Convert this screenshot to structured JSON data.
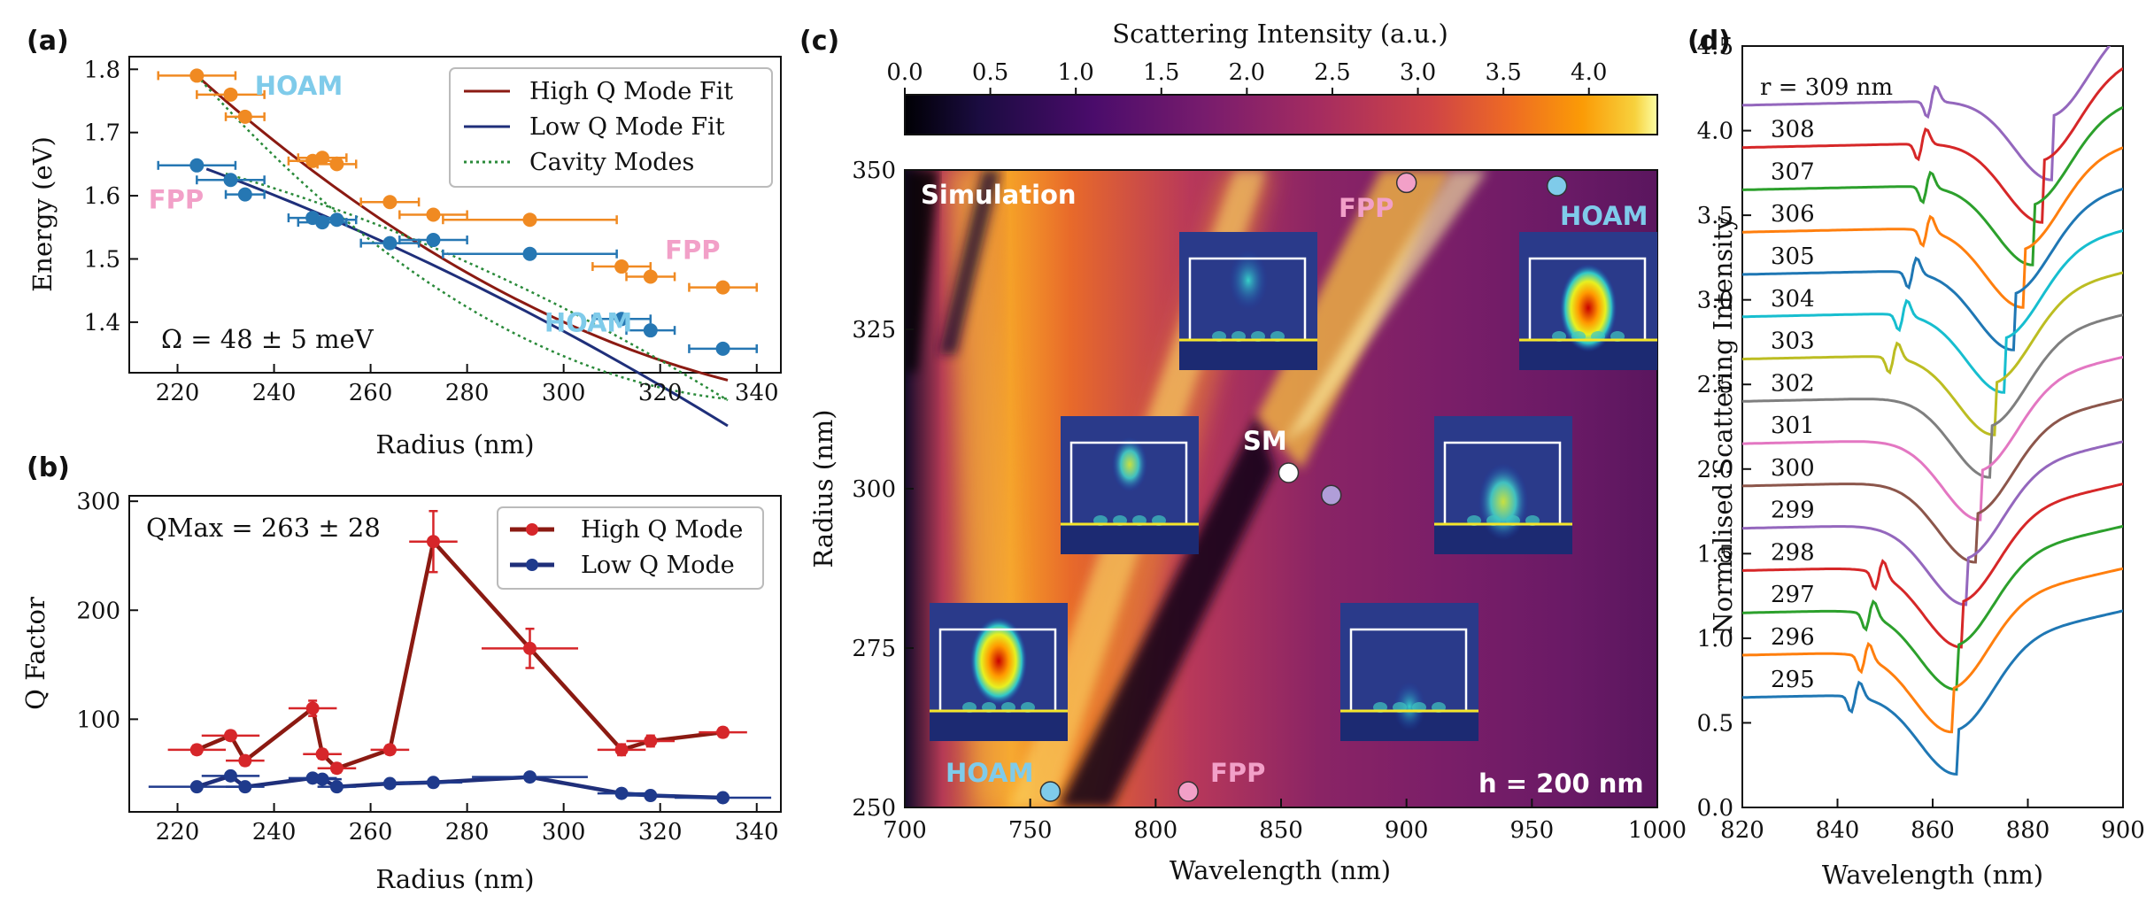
{
  "colors": {
    "orange": "#f08a22",
    "blue": "#2677b3",
    "highfit": "#8b1a12",
    "lowfit": "#1f2f7a",
    "cavity": "#2a8a3a",
    "red": "#d6262a",
    "navy": "#1f3a8c",
    "hoam": "#7fcbea",
    "fpp": "#f2a0c8"
  },
  "chart_data": [
    {
      "panel": "(a)",
      "type": "scatter",
      "xlabel": "Radius (nm)",
      "ylabel": "Energy (eV)",
      "xlim": [
        210,
        345
      ],
      "ylim": [
        1.32,
        1.82
      ],
      "xticks": [
        220,
        240,
        260,
        280,
        300,
        320,
        340
      ],
      "yticks": [
        1.4,
        1.5,
        1.6,
        1.7,
        1.8
      ],
      "annotation": "Ω = 48 ± 5 meV",
      "labels": [
        {
          "text": "HOAM",
          "x": 236,
          "y": 1.76,
          "color": "hoam"
        },
        {
          "text": "FPP",
          "x": 214,
          "y": 1.58,
          "color": "fpp"
        },
        {
          "text": "FPP",
          "x": 321,
          "y": 1.5,
          "color": "fpp"
        },
        {
          "text": "HOAM",
          "x": 296,
          "y": 1.385,
          "color": "hoam"
        }
      ],
      "legend": [
        "High Q Mode Fit",
        "Low Q Mode Fit",
        "Cavity Modes"
      ],
      "series": [
        {
          "name": "upper",
          "color": "orange",
          "x": [
            224,
            231,
            234,
            248,
            250,
            253,
            264,
            273,
            293,
            312,
            318,
            333
          ],
          "y": [
            1.79,
            1.76,
            1.725,
            1.655,
            1.66,
            1.65,
            1.59,
            1.57,
            1.562,
            1.488,
            1.472,
            1.455
          ],
          "xerr": [
            8,
            7,
            4,
            5,
            5,
            4,
            6,
            7,
            18,
            6,
            5,
            7
          ]
        },
        {
          "name": "lower",
          "color": "blue",
          "x": [
            224,
            231,
            234,
            248,
            250,
            253,
            264,
            273,
            293,
            312,
            318,
            333
          ],
          "y": [
            1.648,
            1.625,
            1.602,
            1.565,
            1.558,
            1.562,
            1.525,
            1.53,
            1.508,
            1.405,
            1.387,
            1.358
          ],
          "xerr": [
            8,
            7,
            4,
            5,
            5,
            4,
            6,
            7,
            18,
            6,
            5,
            7
          ]
        }
      ]
    },
    {
      "panel": "(b)",
      "type": "line",
      "xlabel": "Radius (nm)",
      "ylabel": "Q Factor",
      "xlim": [
        210,
        345
      ],
      "ylim": [
        15,
        305
      ],
      "xticks": [
        220,
        240,
        260,
        280,
        300,
        320,
        340
      ],
      "yticks": [
        100,
        200,
        300
      ],
      "annotation": "QMax = 263 ± 28",
      "legend": [
        "High Q Mode",
        "Low Q Mode"
      ],
      "series": [
        {
          "name": "High Q Mode",
          "color": "red",
          "line": "highfit",
          "x": [
            224,
            231,
            234,
            248,
            250,
            253,
            264,
            273,
            293,
            312,
            318,
            333
          ],
          "y": [
            72,
            85,
            62,
            110,
            68,
            55,
            72,
            263,
            165,
            72,
            80,
            88
          ],
          "yerr": [
            4,
            4,
            4,
            7,
            4,
            4,
            4,
            28,
            18,
            5,
            5,
            4
          ],
          "xerr": [
            6,
            6,
            4,
            5,
            4,
            4,
            4,
            5,
            10,
            5,
            5,
            5
          ]
        },
        {
          "name": "Low Q Mode",
          "color": "navy",
          "line": "lowfit",
          "x": [
            224,
            231,
            234,
            248,
            250,
            253,
            264,
            273,
            293,
            312,
            318,
            333
          ],
          "y": [
            38,
            48,
            38,
            46,
            45,
            38,
            41,
            42,
            47,
            32,
            30,
            28
          ],
          "yerr": [
            2,
            3,
            2,
            3,
            3,
            2,
            2,
            2,
            3,
            2,
            2,
            2
          ],
          "xerr": [
            10,
            6,
            4,
            5,
            4,
            4,
            4,
            6,
            12,
            5,
            5,
            10
          ]
        }
      ]
    },
    {
      "panel": "(c)",
      "type": "heatmap",
      "xlabel": "Wavelength (nm)",
      "ylabel": "Radius (nm)",
      "xlim": [
        700,
        1000
      ],
      "ylim": [
        250,
        350
      ],
      "xticks": [
        700,
        750,
        800,
        850,
        900,
        950,
        1000
      ],
      "yticks": [
        250,
        275,
        300,
        325,
        350
      ],
      "colorbar": {
        "label": "Scattering Intensity (a.u.)",
        "range": [
          0,
          4.4
        ],
        "ticks": [
          "0.0",
          "0.5",
          "1.0",
          "1.5",
          "2.0",
          "2.5",
          "3.0",
          "3.5",
          "4.0"
        ]
      },
      "labels": {
        "simulation": "Simulation",
        "height": "h = 200 nm",
        "sm": "SM",
        "hoam": "HOAM",
        "fpp": "FPP"
      },
      "markers": [
        {
          "x": 758,
          "y": 252.5,
          "color": "hoam"
        },
        {
          "x": 813,
          "y": 252.5,
          "color": "fpp"
        },
        {
          "x": 900,
          "y": 348,
          "color": "fpp"
        },
        {
          "x": 960,
          "y": 347.5,
          "color": "hoam"
        },
        {
          "x": 853,
          "y": 302.5,
          "color": "white"
        },
        {
          "x": 870,
          "y": 299,
          "color": "#b09ed8"
        }
      ]
    },
    {
      "panel": "(d)",
      "type": "line",
      "xlabel": "Wavelength (nm)",
      "ylabel": "Normalised Scattering Intensity",
      "xlim": [
        820,
        900
      ],
      "ylim": [
        0,
        4.5
      ],
      "xticks": [
        820,
        840,
        860,
        880,
        900
      ],
      "yticks": [
        "0.0",
        "0.5",
        "1.0",
        "1.5",
        "2.0",
        "2.5",
        "3.0",
        "3.5",
        "4.0",
        "4.5"
      ],
      "series_labels": [
        "r = 309 nm",
        "308",
        "307",
        "306",
        "305",
        "304",
        "303",
        "302",
        "301",
        "300",
        "299",
        "298",
        "297",
        "296",
        "295"
      ],
      "series_colors": [
        "#9467bd",
        "#d62728",
        "#2ca02c",
        "#ff7f0e",
        "#1f77b4",
        "#17becf",
        "#bcbd22",
        "#7f7f7f",
        "#e377c2",
        "#8c564b",
        "#9467bd",
        "#d62728",
        "#2ca02c",
        "#ff7f0e",
        "#1f77b4"
      ],
      "offsets": [
        4.15,
        3.9,
        3.65,
        3.4,
        3.15,
        2.9,
        2.65,
        2.4,
        2.15,
        1.9,
        1.65,
        1.4,
        1.15,
        0.9,
        0.65
      ],
      "dip_centers": [
        885,
        883,
        881,
        879,
        877,
        875,
        873,
        872,
        870,
        869,
        867,
        866,
        865,
        864,
        865
      ],
      "sharp_dips": [
        859,
        857,
        858,
        858,
        855,
        853,
        851,
        0,
        0,
        0,
        0,
        848,
        846,
        845,
        843
      ]
    }
  ]
}
